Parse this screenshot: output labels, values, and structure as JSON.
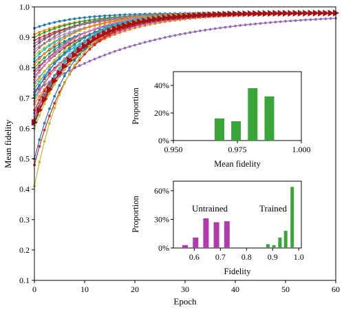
{
  "chart_data": [
    {
      "type": "line",
      "xlabel": "Epoch",
      "ylabel": "Mean fidelity",
      "xlim": [
        0,
        60
      ],
      "ylim": [
        0.1,
        1.0
      ],
      "xticks": [
        "0",
        "10",
        "20",
        "30",
        "40",
        "50",
        "60"
      ],
      "yticks": [
        "0.1",
        "0.2",
        "0.3",
        "0.4",
        "0.5",
        "0.6",
        "0.7",
        "0.8",
        "0.9",
        "1.0"
      ],
      "grid": false,
      "final_value_approx": 0.98,
      "series": [
        {
          "start": 0.93,
          "rate": 0.12,
          "color": "#1f77b4"
        },
        {
          "start": 0.91,
          "rate": 0.1,
          "color": "#ff7f0e"
        },
        {
          "start": 0.9,
          "rate": 0.11,
          "color": "#2ca02c"
        },
        {
          "start": 0.89,
          "rate": 0.09,
          "color": "#d62728"
        },
        {
          "start": 0.88,
          "rate": 0.1,
          "color": "#9467bd"
        },
        {
          "start": 0.87,
          "rate": 0.12,
          "color": "#8c564b"
        },
        {
          "start": 0.86,
          "rate": 0.09,
          "color": "#e377c2"
        },
        {
          "start": 0.85,
          "rate": 0.13,
          "color": "#7f7f7f"
        },
        {
          "start": 0.84,
          "rate": 0.1,
          "color": "#bcbd22"
        },
        {
          "start": 0.83,
          "rate": 0.11,
          "color": "#17becf"
        },
        {
          "start": 0.82,
          "rate": 0.09,
          "color": "#1f77b4"
        },
        {
          "start": 0.81,
          "rate": 0.12,
          "color": "#ff7f0e"
        },
        {
          "start": 0.8,
          "rate": 0.1,
          "color": "#2ca02c"
        },
        {
          "start": 0.79,
          "rate": 0.09,
          "color": "#d62728"
        },
        {
          "start": 0.78,
          "rate": 0.11,
          "color": "#9467bd"
        },
        {
          "start": 0.77,
          "rate": 0.1,
          "color": "#8c564b"
        },
        {
          "start": 0.76,
          "rate": 0.12,
          "color": "#e377c2"
        },
        {
          "start": 0.75,
          "rate": 0.09,
          "color": "#7f7f7f"
        },
        {
          "start": 0.74,
          "rate": 0.11,
          "color": "#bcbd22"
        },
        {
          "start": 0.73,
          "rate": 0.1,
          "color": "#17becf"
        },
        {
          "start": 0.72,
          "rate": 0.09,
          "color": "#d62728"
        },
        {
          "start": 0.71,
          "rate": 0.12,
          "color": "#1f77b4"
        },
        {
          "start": 0.7,
          "rate": 0.1,
          "color": "#2ca02c"
        },
        {
          "start": 0.69,
          "rate": 0.11,
          "color": "#e377c2"
        },
        {
          "start": 0.68,
          "rate": 0.09,
          "color": "#ff7f0e"
        },
        {
          "start": 0.66,
          "rate": 0.11,
          "color": "#d62728"
        },
        {
          "start": 0.65,
          "rate": 0.1,
          "color": "#9467bd"
        },
        {
          "start": 0.64,
          "rate": 0.12,
          "color": "#e377c2"
        },
        {
          "start": 0.63,
          "rate": 0.13,
          "color": "#8c564b"
        },
        {
          "start": 0.62,
          "rate": 0.11,
          "color": "#d62728"
        },
        {
          "start": 0.61,
          "rate": 0.14,
          "color": "#17becf"
        },
        {
          "start": 0.6,
          "rate": 0.12,
          "color": "#bcbd22"
        },
        {
          "start": 0.72,
          "rate": 0.045,
          "color": "#9467bd"
        },
        {
          "start": 0.5,
          "rate": 0.14,
          "color": "#1f77b4"
        },
        {
          "start": 0.48,
          "rate": 0.13,
          "color": "#d62728"
        },
        {
          "start": 0.41,
          "rate": 0.15,
          "color": "#bcbd22"
        }
      ],
      "highlight": {
        "start": 0.62,
        "rate": 0.12,
        "color": "#a50f15",
        "marker": "triangle"
      }
    },
    {
      "type": "bar",
      "xlabel": "Mean fidelity",
      "ylabel": "Proportion",
      "xlim": [
        0.95,
        1.0
      ],
      "ylim": [
        0,
        0.5
      ],
      "xticks": [
        "0.950",
        "0.975",
        "1.000"
      ],
      "yticks": [
        "0%",
        "20%",
        "40%"
      ],
      "bar_color": "#3aa63a",
      "bars": [
        {
          "x": 0.968,
          "value": 0.16
        },
        {
          "x": 0.9745,
          "value": 0.14
        },
        {
          "x": 0.981,
          "value": 0.38
        },
        {
          "x": 0.9875,
          "value": 0.32
        }
      ]
    },
    {
      "type": "bar",
      "xlabel": "Fidelity",
      "ylabel": "Proportion",
      "xlim": [
        0.52,
        1.01
      ],
      "ylim": [
        0,
        0.7
      ],
      "xticks": [
        "0.6",
        "0.7",
        "0.8",
        "0.9",
        "1.0"
      ],
      "yticks": [
        "0%",
        "30%",
        "60%"
      ],
      "annotations": [
        "Untrained",
        "Trained"
      ],
      "series": [
        {
          "name": "Untrained",
          "color": "#b03ab0",
          "bars": [
            {
              "x": 0.565,
              "value": 0.03
            },
            {
              "x": 0.605,
              "value": 0.11
            },
            {
              "x": 0.645,
              "value": 0.31
            },
            {
              "x": 0.685,
              "value": 0.27
            },
            {
              "x": 0.725,
              "value": 0.28
            }
          ]
        },
        {
          "name": "Trained",
          "color": "#3aa63a",
          "bars": [
            {
              "x": 0.882,
              "value": 0.04
            },
            {
              "x": 0.905,
              "value": 0.03
            },
            {
              "x": 0.928,
              "value": 0.11
            },
            {
              "x": 0.95,
              "value": 0.18
            },
            {
              "x": 0.975,
              "value": 0.64
            }
          ]
        }
      ]
    }
  ]
}
